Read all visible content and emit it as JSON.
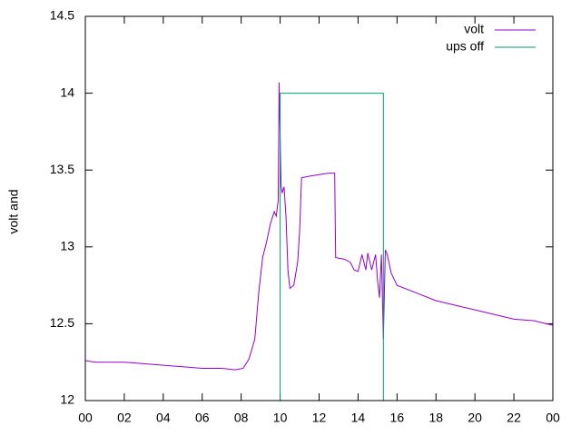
{
  "chart_data": {
    "type": "line",
    "y_label": "volt and",
    "xlim": [
      0,
      24
    ],
    "xticks": [
      {
        "value": 0,
        "label": "00"
      },
      {
        "value": 2,
        "label": "02"
      },
      {
        "value": 4,
        "label": "04"
      },
      {
        "value": 6,
        "label": "06"
      },
      {
        "value": 8,
        "label": "08"
      },
      {
        "value": 10,
        "label": "10"
      },
      12,
      14,
      16,
      18,
      20,
      22,
      {
        "value": 24,
        "label": "00"
      }
    ],
    "ylim": [
      12,
      14.5
    ],
    "yticks": [
      12,
      12.5,
      13,
      13.5,
      14,
      14.5
    ],
    "legend": "top-right",
    "series": [
      {
        "name": "volt",
        "color": "#9400d3",
        "x": [
          0,
          0.5,
          1,
          2,
          3,
          4,
          5,
          6,
          7,
          7.7,
          8.1,
          8.4,
          8.7,
          8.9,
          9.1,
          9.3,
          9.5,
          9.7,
          9.8,
          9.9,
          9.95,
          10.0,
          10.05,
          10.1,
          10.2,
          10.3,
          10.4,
          10.5,
          10.7,
          10.9,
          11.0,
          11.1,
          11.5,
          12,
          12.5,
          12.8,
          12.85,
          13.3,
          13.6,
          13.8,
          14.0,
          14.2,
          14.4,
          14.5,
          14.7,
          14.9,
          15.0,
          15.1,
          15.2,
          15.3,
          15.4,
          15.5,
          15.7,
          16,
          17,
          18,
          19,
          20,
          21,
          22,
          23,
          24
        ],
        "values": [
          12.26,
          12.25,
          12.25,
          12.25,
          12.24,
          12.23,
          12.22,
          12.21,
          12.21,
          12.2,
          12.21,
          12.27,
          12.4,
          12.7,
          12.93,
          13.03,
          13.15,
          13.23,
          13.2,
          13.3,
          14.07,
          13.72,
          13.4,
          13.35,
          13.39,
          13.2,
          12.85,
          12.73,
          12.75,
          12.9,
          13.1,
          13.45,
          13.46,
          13.47,
          13.48,
          13.48,
          12.93,
          12.92,
          12.9,
          12.85,
          12.84,
          12.95,
          12.85,
          12.96,
          12.85,
          12.95,
          12.78,
          12.67,
          12.95,
          12.4,
          12.98,
          12.95,
          12.83,
          12.75,
          12.7,
          12.65,
          12.62,
          12.59,
          12.56,
          12.53,
          12.52,
          12.49
        ]
      },
      {
        "name": "ups off",
        "color": "#009e73",
        "x": [
          10.0,
          10.0,
          15.3,
          15.3
        ],
        "values": [
          12,
          14,
          14,
          12
        ]
      }
    ]
  }
}
